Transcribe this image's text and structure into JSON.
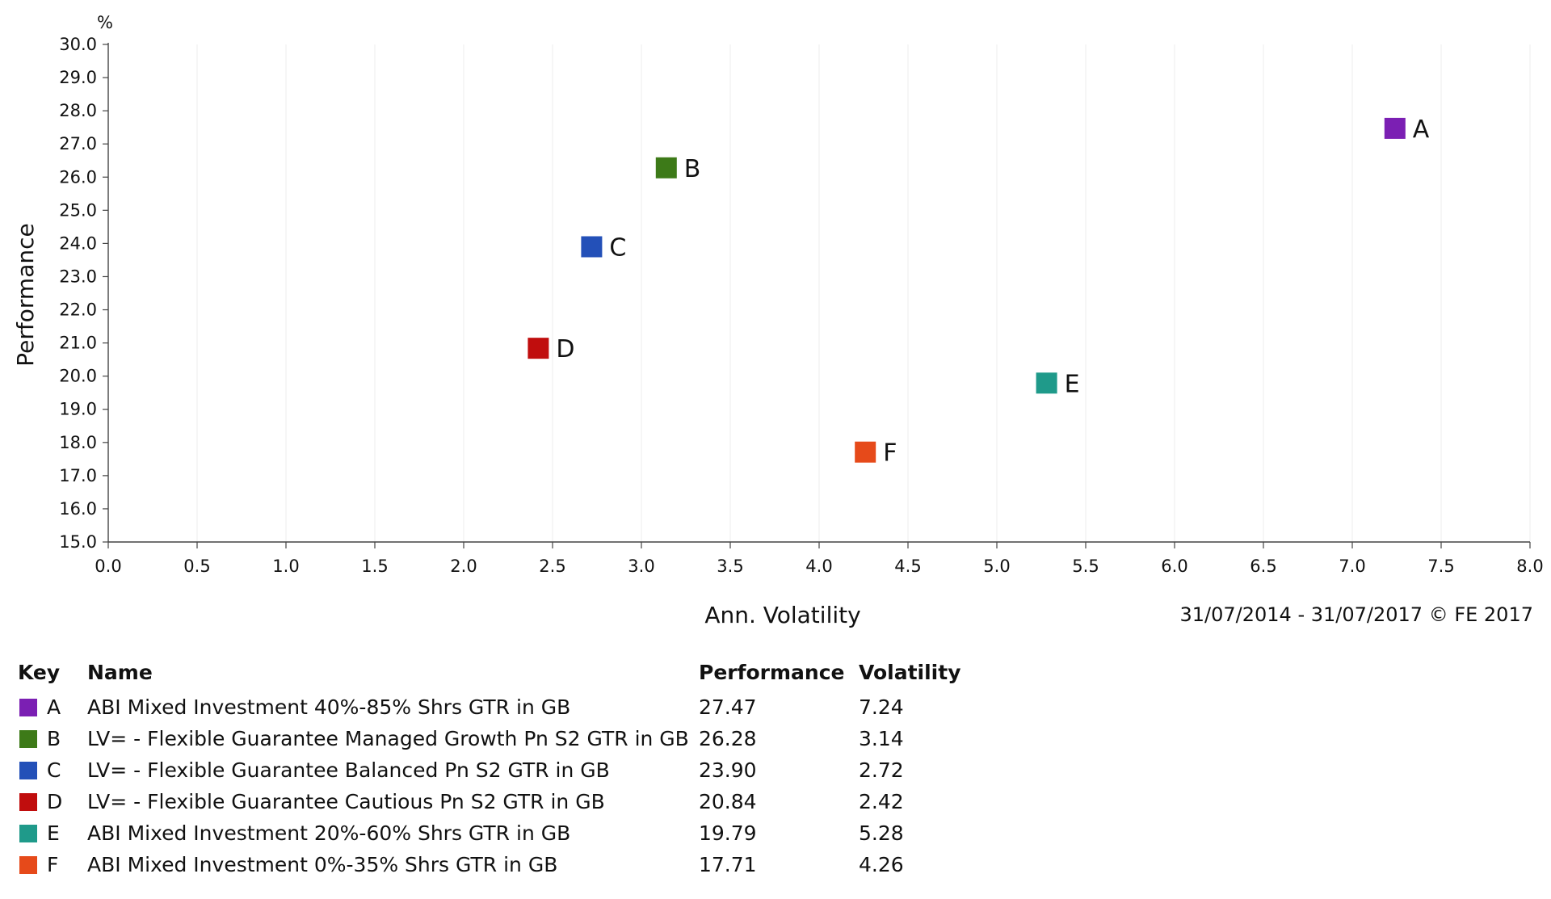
{
  "chart_data": {
    "type": "scatter",
    "xlabel": "Ann. Volatility",
    "ylabel": "Performance",
    "y_unit": "%",
    "xlim": [
      0,
      8
    ],
    "ylim": [
      15,
      30
    ],
    "x_ticks": [
      "0.0",
      "0.5",
      "1.0",
      "1.5",
      "2.0",
      "2.5",
      "3.0",
      "3.5",
      "4.0",
      "4.5",
      "5.0",
      "5.5",
      "6.0",
      "6.5",
      "7.0",
      "7.5",
      "8.0"
    ],
    "y_ticks": [
      "15.0",
      "16.0",
      "17.0",
      "18.0",
      "19.0",
      "20.0",
      "21.0",
      "22.0",
      "23.0",
      "24.0",
      "25.0",
      "26.0",
      "27.0",
      "28.0",
      "29.0",
      "30.0"
    ],
    "grid": "vertical",
    "period": "31/07/2014 - 31/07/2017 © FE 2017",
    "points": [
      {
        "key": "A",
        "name": "ABI Mixed Investment 40%-85% Shrs GTR in GB",
        "x": 7.24,
        "y": 27.47,
        "color": "#7b1fb3"
      },
      {
        "key": "B",
        "name": "LV= - Flexible Guarantee Managed Growth Pn S2 GTR in GB",
        "x": 3.14,
        "y": 26.28,
        "color": "#3d7a18"
      },
      {
        "key": "C",
        "name": "LV= - Flexible Guarantee Balanced Pn S2 GTR in GB",
        "x": 2.72,
        "y": 23.9,
        "color": "#2350b8"
      },
      {
        "key": "D",
        "name": "LV= - Flexible Guarantee Cautious Pn S2 GTR in GB",
        "x": 2.42,
        "y": 20.84,
        "color": "#c00d0d"
      },
      {
        "key": "E",
        "name": "ABI Mixed Investment 20%-60% Shrs GTR in GB",
        "x": 5.28,
        "y": 19.79,
        "color": "#1f9a8a"
      },
      {
        "key": "F",
        "name": "ABI Mixed Investment 0%-35% Shrs GTR in GB",
        "x": 4.26,
        "y": 17.71,
        "color": "#e64a1a"
      }
    ]
  },
  "table": {
    "headers": {
      "key": "Key",
      "name": "Name",
      "performance": "Performance",
      "volatility": "Volatility"
    },
    "rows": [
      {
        "key": "A",
        "name": "ABI Mixed Investment 40%-85% Shrs GTR in GB",
        "performance": "27.47",
        "volatility": "7.24"
      },
      {
        "key": "B",
        "name": "LV= - Flexible Guarantee Managed Growth Pn S2 GTR in GB",
        "performance": "26.28",
        "volatility": "3.14"
      },
      {
        "key": "C",
        "name": "LV= - Flexible Guarantee Balanced Pn S2 GTR in GB",
        "performance": "23.90",
        "volatility": "2.72"
      },
      {
        "key": "D",
        "name": "LV= - Flexible Guarantee Cautious Pn S2 GTR in GB",
        "performance": "20.84",
        "volatility": "2.42"
      },
      {
        "key": "E",
        "name": "ABI Mixed Investment 20%-60% Shrs GTR in GB",
        "performance": "19.79",
        "volatility": "5.28"
      },
      {
        "key": "F",
        "name": "ABI Mixed Investment 0%-35% Shrs GTR in GB",
        "performance": "17.71",
        "volatility": "4.26"
      }
    ]
  }
}
